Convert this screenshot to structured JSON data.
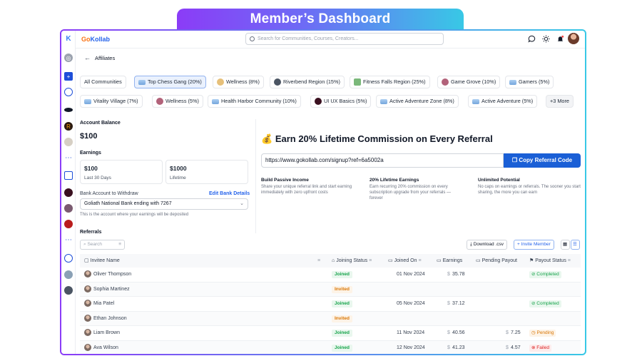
{
  "banner": {
    "title": "Member’s Dashboard"
  },
  "header": {
    "logo_a": "Go",
    "logo_b": "Kollab",
    "search_placeholder": "Search for Communities, Courses, Creators..."
  },
  "breadcrumb": {
    "page": "Affiliates"
  },
  "communities": [
    {
      "label": "All Communities"
    },
    {
      "label": "Top Chess Gang (20%)",
      "active": true
    },
    {
      "label": "Wellness (8%)"
    },
    {
      "label": "Riverbend Region (15%)"
    },
    {
      "label": "Fitness Falls Region (25%)"
    },
    {
      "label": "Game Grove (10%)"
    },
    {
      "label": "Gamers (5%)"
    },
    {
      "label": "Vitality Village (7%)"
    },
    {
      "label": "Wellness (5%)"
    },
    {
      "label": "Health Harbor Community (10%)"
    },
    {
      "label": "UI UX Basics (5%)"
    },
    {
      "label": "Active Adventure Zone (8%)"
    },
    {
      "label": "Active Adventure (5%)"
    },
    {
      "label": "+3 More"
    }
  ],
  "balance": {
    "label": "Account Balance",
    "value": "$100",
    "earnings_label": "Earnings",
    "last30_value": "$100",
    "last30_label": "Last 30 Days",
    "lifetime_value": "$1000",
    "lifetime_label": "Lifetime"
  },
  "bank": {
    "label": "Bank Account to Withdraw",
    "edit": "Edit Bank Details",
    "selected": "Goliath National Bank ending with 7267",
    "hint": "This is the account where your earnings will be deposited"
  },
  "referral": {
    "emoji": "💰",
    "headline": "Earn 20% Lifetime Commission on Every Referral",
    "url": "https://www.gokollab.com/signup?ref=6a5002a",
    "copy": "Copy Referral Code",
    "features": [
      {
        "title": "Build Passive Income",
        "desc": "Share your unique referral link and start earning immediately with zero upfront costs"
      },
      {
        "title": "20% Lifetime Earnings",
        "desc": "Earn recurring 20% commission on every subscription upgrade from your referrals — forever"
      },
      {
        "title": "Unlimited Potential",
        "desc": "No caps on earnings or referrals. The sooner you start sharing, the more you can earn"
      }
    ]
  },
  "referrals": {
    "title": "Referrals",
    "search_placeholder": "Search",
    "download": "Download .csv",
    "invite": "Invite Member",
    "columns": [
      "Invitee Name",
      "Joining Status",
      "Joined On",
      "Earnings",
      "Pending Payout",
      "Payout Status"
    ],
    "rows": [
      {
        "name": "Oliver Thompson",
        "status": "Joined",
        "date": "01 Nov 2024",
        "earn_cur": "$",
        "earn": "35.78",
        "pending_cur": "",
        "pending": "",
        "payout": "Completed"
      },
      {
        "name": "Sophia Martinez",
        "status": "Invited",
        "date": "",
        "earn_cur": "",
        "earn": "",
        "pending_cur": "",
        "pending": "",
        "payout": ""
      },
      {
        "name": "Mia Patel",
        "status": "Joined",
        "date": "05 Nov 2024",
        "earn_cur": "$",
        "earn": "37.12",
        "pending_cur": "",
        "pending": "",
        "payout": "Completed"
      },
      {
        "name": "Ethan Johnson",
        "status": "Invited",
        "date": "",
        "earn_cur": "",
        "earn": "",
        "pending_cur": "",
        "pending": "",
        "payout": ""
      },
      {
        "name": "Liam Brown",
        "status": "Joined",
        "date": "11 Nov 2024",
        "earn_cur": "$",
        "earn": "40.56",
        "pending_cur": "$",
        "pending": "7.25",
        "payout": "Pending"
      },
      {
        "name": "Ava Wilson",
        "status": "Joined",
        "date": "12 Nov 2024",
        "earn_cur": "$",
        "earn": "41.23",
        "pending_cur": "$",
        "pending": "4.57",
        "payout": "Failed"
      }
    ]
  },
  "colors": {
    "accent": "#1a5fd6",
    "gradient_start": "#8b3cf7",
    "gradient_end": "#38c8e6"
  }
}
